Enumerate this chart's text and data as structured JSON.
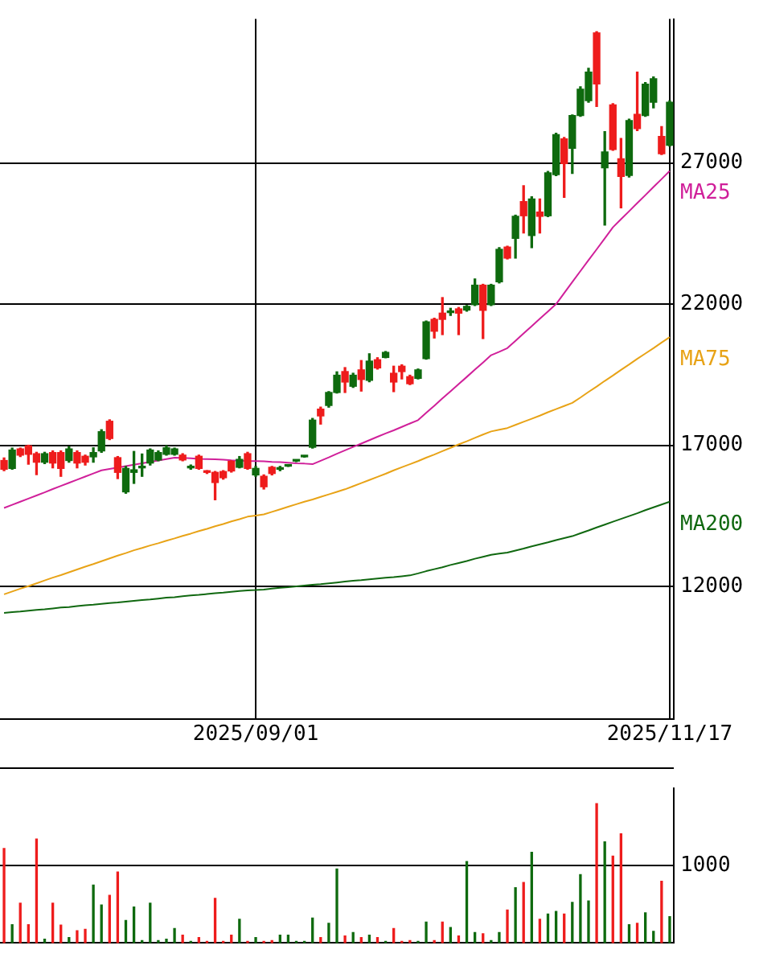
{
  "chart_data": [
    {
      "type": "candlestick",
      "categories": [
        null,
        null,
        null,
        null,
        null,
        null,
        null,
        null,
        null,
        null,
        null,
        null,
        null,
        null,
        null,
        null,
        null,
        null,
        null,
        null,
        null,
        null,
        null,
        null,
        null,
        null,
        null,
        null,
        null,
        null,
        null,
        "2025/09/01",
        null,
        null,
        null,
        null,
        null,
        null,
        null,
        null,
        null,
        null,
        null,
        null,
        null,
        null,
        null,
        null,
        null,
        null,
        null,
        null,
        null,
        null,
        null,
        null,
        null,
        null,
        null,
        null,
        null,
        null,
        null,
        null,
        null,
        null,
        null,
        null,
        null,
        null,
        null,
        null,
        null,
        null,
        null,
        null,
        null,
        null,
        null,
        null,
        null,
        null,
        "2025/11/17"
      ],
      "ohlc": [
        [
          16460,
          16550,
          16100,
          16150
        ],
        [
          16180,
          16900,
          16150,
          16830
        ],
        [
          16870,
          16900,
          16600,
          16650
        ],
        [
          16980,
          17000,
          16330,
          16680
        ],
        [
          16700,
          16750,
          15960,
          16400
        ],
        [
          16400,
          16750,
          16350,
          16700
        ],
        [
          16740,
          16800,
          16200,
          16370
        ],
        [
          16740,
          16800,
          15900,
          16180
        ],
        [
          16460,
          16950,
          16400,
          16870
        ],
        [
          16740,
          16800,
          16200,
          16370
        ],
        [
          16610,
          16650,
          16300,
          16400
        ],
        [
          16590,
          16910,
          16400,
          16740
        ],
        [
          16800,
          17550,
          16750,
          17480
        ],
        [
          17850,
          17900,
          17200,
          17240
        ],
        [
          16560,
          16600,
          15820,
          16040
        ],
        [
          15350,
          16250,
          15300,
          16180
        ],
        [
          16040,
          16780,
          15650,
          16130
        ],
        [
          16200,
          16690,
          15900,
          16240
        ],
        [
          16370,
          16870,
          16300,
          16830
        ],
        [
          16480,
          16800,
          16450,
          16740
        ],
        [
          16680,
          16980,
          16650,
          16910
        ],
        [
          16680,
          16900,
          16650,
          16870
        ],
        [
          16650,
          16700,
          16450,
          16480
        ],
        [
          16200,
          16300,
          16150,
          16240
        ],
        [
          16610,
          16650,
          16150,
          16180
        ],
        [
          16070,
          16100,
          16000,
          16040
        ],
        [
          16040,
          16070,
          15070,
          15680
        ],
        [
          16070,
          16100,
          15800,
          15850
        ],
        [
          16430,
          16450,
          16050,
          16090
        ],
        [
          16220,
          16600,
          16200,
          16500
        ],
        [
          16700,
          16750,
          16150,
          16180
        ],
        [
          15950,
          16250,
          15900,
          16180
        ],
        [
          15900,
          15950,
          15450,
          15530
        ],
        [
          16220,
          16250,
          15950,
          16000
        ],
        [
          16150,
          16250,
          16100,
          16200
        ],
        [
          16260,
          16300,
          16250,
          16280
        ],
        [
          16440,
          16480,
          16420,
          16460
        ],
        [
          16590,
          16630,
          16580,
          16610
        ],
        [
          16930,
          17950,
          16900,
          17890
        ],
        [
          18280,
          18350,
          17750,
          18040
        ],
        [
          18410,
          18900,
          18350,
          18870
        ],
        [
          18870,
          19600,
          18850,
          19480
        ],
        [
          19610,
          19750,
          18870,
          19240
        ],
        [
          19090,
          19550,
          19050,
          19480
        ],
        [
          19670,
          20000,
          18920,
          19330
        ],
        [
          19300,
          20240,
          19250,
          19980
        ],
        [
          20030,
          20100,
          19700,
          19740
        ],
        [
          20110,
          20320,
          20100,
          20290
        ],
        [
          19550,
          19800,
          18900,
          19240
        ],
        [
          19800,
          19850,
          19350,
          19610
        ],
        [
          19430,
          19480,
          19150,
          19180
        ],
        [
          19370,
          19700,
          19350,
          19670
        ],
        [
          20070,
          21400,
          20050,
          21370
        ],
        [
          21460,
          21500,
          20800,
          21040
        ],
        [
          21680,
          22230,
          20920,
          21460
        ],
        [
          21700,
          21850,
          21600,
          21740
        ],
        [
          21830,
          21880,
          20920,
          21680
        ],
        [
          21790,
          21950,
          21750,
          21920
        ],
        [
          21980,
          22890,
          21950,
          22670
        ],
        [
          22670,
          22700,
          20780,
          21780
        ],
        [
          21980,
          22700,
          21950,
          22670
        ],
        [
          22790,
          24000,
          22750,
          23940
        ],
        [
          24020,
          24050,
          23600,
          23630
        ],
        [
          24330,
          25150,
          23630,
          25110
        ],
        [
          25630,
          26190,
          24520,
          25130
        ],
        [
          24430,
          25800,
          24000,
          25720
        ],
        [
          25260,
          25720,
          24520,
          25110
        ],
        [
          25130,
          26700,
          25100,
          26650
        ],
        [
          26590,
          28050,
          26550,
          28000
        ],
        [
          27850,
          27900,
          25780,
          26980
        ],
        [
          27520,
          28700,
          26630,
          28680
        ],
        [
          28680,
          29700,
          28650,
          29610
        ],
        [
          29210,
          30350,
          29150,
          30220
        ],
        [
          31610,
          31650,
          29000,
          29800
        ],
        [
          26830,
          28110,
          24800,
          27390
        ],
        [
          29060,
          29100,
          27450,
          27480
        ],
        [
          27150,
          27870,
          25410,
          26520
        ],
        [
          26560,
          28550,
          26500,
          28500
        ],
        [
          28720,
          30220,
          28150,
          28220
        ],
        [
          28680,
          29850,
          28650,
          29790
        ],
        [
          29150,
          30050,
          28950,
          29980
        ],
        [
          27940,
          28290,
          27300,
          27330
        ],
        [
          27630,
          29200,
          27600,
          29150
        ]
      ],
      "colors": [
        "#ee1c1c",
        "#0e6a0e",
        "#ee1c1c",
        "#ee1c1c",
        "#ee1c1c",
        "#0e6a0e",
        "#ee1c1c",
        "#ee1c1c",
        "#0e6a0e",
        "#ee1c1c",
        "#ee1c1c",
        "#0e6a0e",
        "#0e6a0e",
        "#ee1c1c",
        "#ee1c1c",
        "#0e6a0e",
        "#0e6a0e",
        "#0e6a0e",
        "#0e6a0e",
        "#0e6a0e",
        "#0e6a0e",
        "#0e6a0e",
        "#ee1c1c",
        "#0e6a0e",
        "#ee1c1c",
        "#ee1c1c",
        "#ee1c1c",
        "#ee1c1c",
        "#ee1c1c",
        "#0e6a0e",
        "#ee1c1c",
        "#0e6a0e",
        "#ee1c1c",
        "#ee1c1c",
        "#0e6a0e",
        "#0e6a0e",
        "#0e6a0e",
        "#0e6a0e",
        "#0e6a0e",
        "#ee1c1c",
        "#0e6a0e",
        "#0e6a0e",
        "#ee1c1c",
        "#0e6a0e",
        "#ee1c1c",
        "#0e6a0e",
        "#ee1c1c",
        "#0e6a0e",
        "#ee1c1c",
        "#ee1c1c",
        "#ee1c1c",
        "#0e6a0e",
        "#0e6a0e",
        "#ee1c1c",
        "#ee1c1c",
        "#0e6a0e",
        "#ee1c1c",
        "#0e6a0e",
        "#0e6a0e",
        "#ee1c1c",
        "#0e6a0e",
        "#0e6a0e",
        "#ee1c1c",
        "#0e6a0e",
        "#ee1c1c",
        "#0e6a0e",
        "#ee1c1c",
        "#0e6a0e",
        "#0e6a0e",
        "#ee1c1c",
        "#0e6a0e",
        "#0e6a0e",
        "#0e6a0e",
        "#ee1c1c",
        "#0e6a0e",
        "#ee1c1c",
        "#ee1c1c",
        "#0e6a0e",
        "#ee1c1c",
        "#0e6a0e",
        "#0e6a0e",
        "#ee1c1c",
        "#0e6a0e"
      ],
      "series": [
        {
          "type": "line",
          "name": "MA25",
          "color": "#d0209a",
          "values": [
            14780,
            14890,
            15000,
            15110,
            15220,
            15330,
            15450,
            15560,
            15670,
            15780,
            15890,
            16000,
            16110,
            16160,
            16210,
            16260,
            16310,
            16360,
            16410,
            16460,
            16510,
            16560,
            16550,
            16540,
            16520,
            16510,
            16500,
            16490,
            16470,
            16460,
            16440,
            16440,
            16430,
            16410,
            16400,
            16380,
            16360,
            16350,
            16330,
            16450,
            16570,
            16700,
            16820,
            16940,
            17060,
            17180,
            17300,
            17420,
            17530,
            17650,
            17770,
            17890,
            18150,
            18400,
            18660,
            18910,
            19170,
            19420,
            19680,
            19930,
            20190,
            20310,
            20440,
            20700,
            20960,
            21220,
            21480,
            21740,
            22000,
            22390,
            22780,
            23170,
            23560,
            23940,
            24330,
            24720,
            25010,
            25290,
            25580,
            25860,
            26150,
            26430,
            26720
          ]
        },
        {
          "type": "line",
          "name": "MA75",
          "color": "#e8a317",
          "values": [
            11720,
            11820,
            11920,
            12010,
            12110,
            12210,
            12310,
            12400,
            12500,
            12600,
            12700,
            12790,
            12890,
            12990,
            13090,
            13180,
            13280,
            13360,
            13450,
            13530,
            13620,
            13700,
            13790,
            13870,
            13960,
            14040,
            14130,
            14210,
            14300,
            14380,
            14470,
            14510,
            14550,
            14640,
            14730,
            14820,
            14910,
            15000,
            15080,
            15170,
            15260,
            15350,
            15440,
            15550,
            15660,
            15770,
            15880,
            15990,
            16110,
            16220,
            16330,
            16440,
            16560,
            16670,
            16790,
            16910,
            17030,
            17140,
            17260,
            17380,
            17490,
            17550,
            17610,
            17720,
            17830,
            17940,
            18050,
            18170,
            18280,
            18390,
            18500,
            18690,
            18890,
            19080,
            19280,
            19470,
            19670,
            19860,
            20060,
            20250,
            20440,
            20640,
            20830
          ]
        },
        {
          "type": "line",
          "name": "MA200",
          "color": "#106810",
          "values": [
            11060,
            11090,
            11110,
            11140,
            11170,
            11190,
            11220,
            11250,
            11270,
            11300,
            11330,
            11350,
            11380,
            11410,
            11430,
            11460,
            11490,
            11520,
            11540,
            11570,
            11600,
            11620,
            11650,
            11680,
            11700,
            11730,
            11760,
            11780,
            11810,
            11840,
            11860,
            11870,
            11890,
            11920,
            11950,
            11970,
            12000,
            12030,
            12060,
            12080,
            12110,
            12140,
            12170,
            12200,
            12220,
            12250,
            12280,
            12310,
            12330,
            12360,
            12390,
            12460,
            12540,
            12610,
            12680,
            12760,
            12830,
            12900,
            12980,
            13050,
            13120,
            13160,
            13200,
            13270,
            13340,
            13420,
            13490,
            13560,
            13640,
            13710,
            13780,
            13880,
            13980,
            14090,
            14190,
            14290,
            14390,
            14490,
            14590,
            14700,
            14800,
            14900,
            15000
          ]
        }
      ],
      "ylim": [
        7300,
        32100
      ],
      "yticks": [
        12000,
        17000,
        22000,
        27000
      ],
      "grid": true
    },
    {
      "type": "bar",
      "categories": [
        null,
        null,
        null,
        null,
        null,
        null,
        null,
        null,
        null,
        null,
        null,
        null,
        null,
        null,
        null,
        null,
        null,
        null,
        null,
        null,
        null,
        null,
        null,
        null,
        null,
        null,
        null,
        null,
        null,
        null,
        null,
        null,
        null,
        null,
        null,
        null,
        null,
        null,
        null,
        null,
        null,
        null,
        null,
        null,
        null,
        null,
        null,
        null,
        null,
        null,
        null,
        null,
        null,
        null,
        null,
        null,
        null,
        null,
        null,
        null,
        null,
        null,
        null,
        null,
        null,
        null,
        null,
        null,
        null,
        null,
        null,
        null,
        null,
        null,
        null,
        null,
        null,
        null,
        null,
        null,
        null,
        null,
        null
      ],
      "values": [
        1220,
        237,
        514,
        237,
        1340,
        50,
        514,
        230,
        70,
        158,
        175,
        746,
        490,
        615,
        915,
        290,
        463,
        30,
        514,
        30,
        50,
        186,
        100,
        20,
        70,
        20,
        576,
        20,
        100,
        305,
        20,
        70,
        20,
        30,
        100,
        100,
        20,
        20,
        322,
        70,
        254,
        954,
        90,
        135,
        70,
        100,
        70,
        20,
        186,
        20,
        30,
        20,
        270,
        30,
        270,
        200,
        90,
        1050,
        135,
        120,
        30,
        135,
        424,
        712,
        780,
        1170,
        305,
        373,
        407,
        373,
        525,
        881,
        542,
        1797,
        1305,
        1119,
        1407,
        237,
        254,
        390,
        150,
        797,
        339
      ],
      "colors": [
        "#ee1c1c",
        "#0e6a0e",
        "#ee1c1c",
        "#ee1c1c",
        "#ee1c1c",
        "#0e6a0e",
        "#ee1c1c",
        "#ee1c1c",
        "#0e6a0e",
        "#ee1c1c",
        "#ee1c1c",
        "#0e6a0e",
        "#0e6a0e",
        "#ee1c1c",
        "#ee1c1c",
        "#0e6a0e",
        "#0e6a0e",
        "#0e6a0e",
        "#0e6a0e",
        "#0e6a0e",
        "#0e6a0e",
        "#0e6a0e",
        "#ee1c1c",
        "#0e6a0e",
        "#ee1c1c",
        "#ee1c1c",
        "#ee1c1c",
        "#ee1c1c",
        "#ee1c1c",
        "#0e6a0e",
        "#ee1c1c",
        "#0e6a0e",
        "#ee1c1c",
        "#ee1c1c",
        "#0e6a0e",
        "#0e6a0e",
        "#0e6a0e",
        "#0e6a0e",
        "#0e6a0e",
        "#ee1c1c",
        "#0e6a0e",
        "#0e6a0e",
        "#ee1c1c",
        "#0e6a0e",
        "#ee1c1c",
        "#0e6a0e",
        "#ee1c1c",
        "#0e6a0e",
        "#ee1c1c",
        "#ee1c1c",
        "#ee1c1c",
        "#0e6a0e",
        "#0e6a0e",
        "#ee1c1c",
        "#ee1c1c",
        "#0e6a0e",
        "#ee1c1c",
        "#0e6a0e",
        "#0e6a0e",
        "#ee1c1c",
        "#0e6a0e",
        "#0e6a0e",
        "#ee1c1c",
        "#0e6a0e",
        "#ee1c1c",
        "#0e6a0e",
        "#ee1c1c",
        "#0e6a0e",
        "#0e6a0e",
        "#ee1c1c",
        "#0e6a0e",
        "#0e6a0e",
        "#0e6a0e",
        "#ee1c1c",
        "#0e6a0e",
        "#ee1c1c",
        "#ee1c1c",
        "#0e6a0e",
        "#ee1c1c",
        "#0e6a0e",
        "#0e6a0e",
        "#ee1c1c",
        "#0e6a0e"
      ],
      "ylim": [
        0,
        2000
      ],
      "yticks": [
        1000
      ],
      "grid": "y",
      "tick_labels": "y"
    }
  ]
}
